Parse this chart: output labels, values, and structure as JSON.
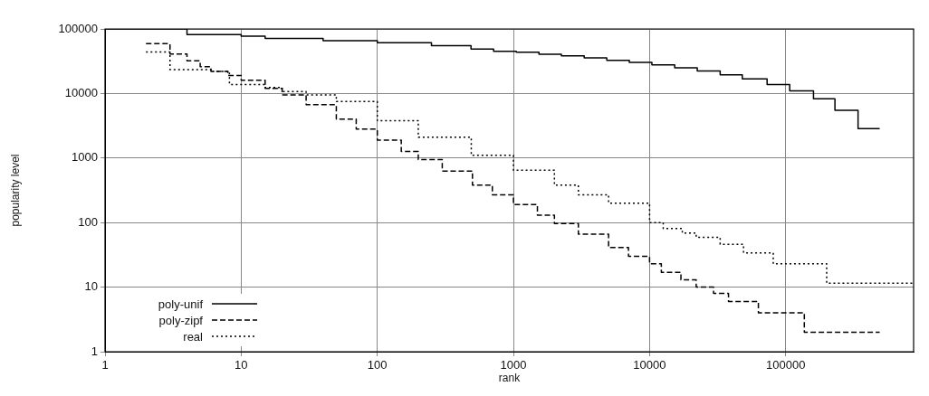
{
  "chart_data": {
    "type": "step",
    "xlabel": "rank",
    "ylabel": "popularity level",
    "log": "xy",
    "grid": true,
    "legend": "bottom left",
    "marker": "none",
    "xlim": [
      1,
      870000
    ],
    "ylim": [
      1,
      100000
    ],
    "xticks": [
      1,
      10,
      100,
      1000,
      10000,
      100000
    ],
    "yticks": [
      1,
      10,
      100,
      1000,
      10000,
      100000
    ],
    "series": [
      {
        "name": "poly-unif",
        "color": "#000000",
        "line_style": "solid",
        "x": [
          1,
          4,
          10,
          15,
          40,
          100,
          250,
          488,
          715,
          1050,
          1540,
          2250,
          3310,
          4850,
          7100,
          10400,
          15300,
          22400,
          33000,
          48000,
          73000,
          107000,
          160000,
          230000,
          340000,
          490000
        ],
        "values": [
          100000,
          82000,
          77000,
          71000,
          66000,
          61000,
          55000,
          48700,
          45000,
          43700,
          40500,
          38400,
          35600,
          32700,
          30300,
          27800,
          25000,
          22400,
          19500,
          16800,
          13800,
          11000,
          8300,
          5500,
          2850,
          2850
        ]
      },
      {
        "name": "poly-zipf",
        "color": "#000000",
        "line_style": "dashed",
        "x": [
          2,
          3,
          4,
          5,
          6,
          8,
          10,
          15,
          20,
          30,
          50,
          70,
          100,
          150,
          200,
          300,
          500,
          700,
          1000,
          1500,
          2000,
          3000,
          5000,
          7000,
          10000,
          12200,
          17000,
          22000,
          29500,
          38000,
          63000,
          137000,
          490000
        ],
        "values": [
          59000,
          41000,
          32000,
          26000,
          22000,
          19000,
          16000,
          12000,
          9500,
          6700,
          4000,
          2800,
          1900,
          1270,
          950,
          630,
          380,
          270,
          190,
          130,
          97,
          66,
          41,
          30,
          23,
          17,
          13,
          10,
          8,
          6,
          4,
          2,
          2
        ]
      },
      {
        "name": "real",
        "color": "#000000",
        "line_style": "dotted",
        "x": [
          2,
          3,
          6,
          8.2,
          15,
          20,
          30,
          50,
          100,
          200,
          490,
          1000,
          2000,
          3000,
          5000,
          10000,
          12600,
          17400,
          22000,
          33000,
          49000,
          81000,
          200000,
          870000
        ],
        "values": [
          44000,
          23500,
          22000,
          13800,
          12400,
          10700,
          9500,
          7500,
          3800,
          2100,
          1100,
          650,
          380,
          270,
          200,
          100,
          81,
          69,
          59,
          46,
          34,
          23,
          11.5,
          11.5
        ]
      }
    ]
  }
}
